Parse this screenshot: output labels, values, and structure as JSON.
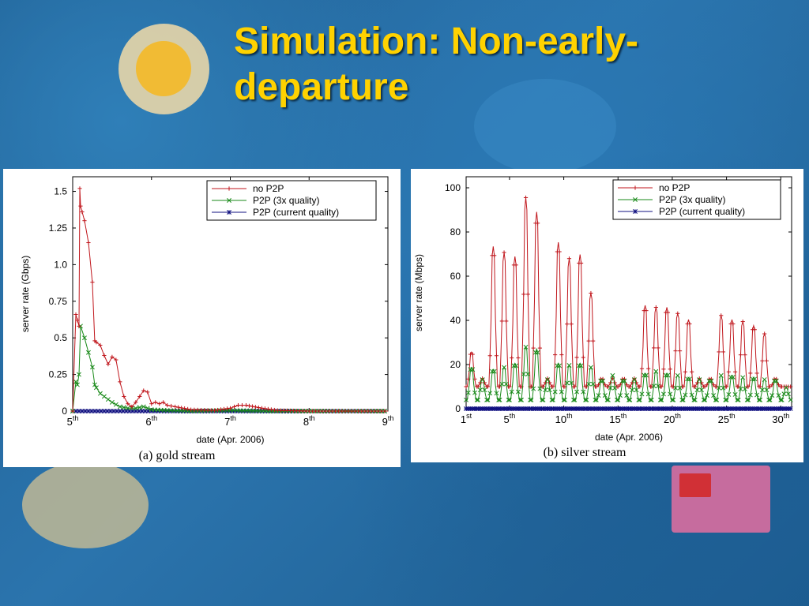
{
  "slide": {
    "title": "Simulation: Non-early-departure"
  },
  "chart_data": [
    {
      "type": "line",
      "caption": "(a)  gold stream",
      "xlabel": "date (Apr. 2006)",
      "ylabel": "server rate (Gbps)",
      "xlim": [
        5,
        9
      ],
      "ylim": [
        0,
        1.6
      ],
      "y_ticks": [
        "0",
        "0.25",
        "0.5",
        "0.75",
        "1.0",
        "1.25",
        "1.5"
      ],
      "x_ticks": [
        {
          "num": "5",
          "sup": "th"
        },
        {
          "num": "6",
          "sup": "th"
        },
        {
          "num": "7",
          "sup": "th"
        },
        {
          "num": "8",
          "sup": "th"
        },
        {
          "num": "9",
          "sup": "th"
        }
      ],
      "legend": "top-right",
      "grid": false,
      "series": [
        {
          "name": "no P2P",
          "color": "#c0161c",
          "marker": "+",
          "x": [
            5.0,
            5.04,
            5.06,
            5.08,
            5.09,
            5.1,
            5.12,
            5.15,
            5.2,
            5.25,
            5.28,
            5.3,
            5.35,
            5.4,
            5.45,
            5.5,
            5.55,
            5.6,
            5.65,
            5.7,
            5.75,
            5.8,
            5.85,
            5.9,
            5.95,
            6.0,
            6.05,
            6.1,
            6.15,
            6.2,
            6.3,
            6.5,
            6.8,
            7.0,
            7.1,
            7.2,
            7.4,
            7.6,
            8.0,
            8.5,
            9.0
          ],
          "y": [
            0.0,
            0.66,
            0.62,
            0.58,
            1.52,
            1.4,
            1.36,
            1.3,
            1.15,
            0.88,
            0.48,
            0.47,
            0.45,
            0.38,
            0.32,
            0.37,
            0.35,
            0.2,
            0.1,
            0.05,
            0.03,
            0.06,
            0.1,
            0.14,
            0.13,
            0.05,
            0.06,
            0.05,
            0.06,
            0.04,
            0.03,
            0.01,
            0.005,
            0.02,
            0.04,
            0.04,
            0.02,
            0.005,
            0.0,
            0.0,
            0.0
          ]
        },
        {
          "name": "P2P (3x quality)",
          "color": "#1a8a1a",
          "marker": "x",
          "x": [
            5.0,
            5.04,
            5.06,
            5.08,
            5.1,
            5.15,
            5.2,
            5.25,
            5.28,
            5.3,
            5.35,
            5.4,
            5.5,
            5.6,
            5.7,
            5.8,
            5.9,
            6.0,
            6.2,
            6.5,
            7.0,
            7.5,
            8.0,
            9.0
          ],
          "y": [
            0.0,
            0.2,
            0.18,
            0.25,
            0.58,
            0.5,
            0.4,
            0.3,
            0.18,
            0.16,
            0.12,
            0.1,
            0.06,
            0.03,
            0.02,
            0.02,
            0.03,
            0.01,
            0.005,
            0.0,
            0.005,
            0.0,
            0.0,
            0.0
          ]
        },
        {
          "name": "P2P (current quality)",
          "color": "#101080",
          "marker": "*",
          "x": [
            5.0,
            9.0
          ],
          "y": [
            0.0,
            0.0
          ]
        }
      ]
    },
    {
      "type": "line",
      "caption": "(b)  silver stream",
      "xlabel": "date (Apr. 2006)",
      "ylabel": "server rate (Mbps)",
      "xlim": [
        1,
        31
      ],
      "ylim": [
        0,
        105
      ],
      "y_ticks": [
        "0",
        "20",
        "40",
        "60",
        "80",
        "100"
      ],
      "x_ticks": [
        {
          "num": "1",
          "sup": "st"
        },
        {
          "num": "5",
          "sup": "th"
        },
        {
          "num": "10",
          "sup": "th"
        },
        {
          "num": "15",
          "sup": "th"
        },
        {
          "num": "20",
          "sup": "th"
        },
        {
          "num": "25",
          "sup": "th"
        },
        {
          "num": "30",
          "sup": "th"
        }
      ],
      "legend": "top-right",
      "grid": false,
      "series": [
        {
          "name": "no P2P",
          "color": "#c0161c",
          "marker": "+",
          "daily_peak_x": [
            1.3,
            3.3,
            4.3,
            5.3,
            6.3,
            7.3,
            9.3,
            10.3,
            11.3,
            12.3,
            17.3,
            18.3,
            19.3,
            20.3,
            21.3,
            24.3,
            25.3,
            26.3,
            27.3,
            28.3,
            30.3
          ],
          "daily_peak_y": [
            27,
            79,
            76,
            74,
            103,
            96,
            81,
            73,
            75,
            56,
            50,
            49,
            49,
            46,
            43,
            45,
            43,
            42,
            40,
            36,
            10
          ],
          "baseline": 10
        },
        {
          "name": "P2P (3x quality)",
          "color": "#1a8a1a",
          "marker": "x",
          "daily_peak_x": [
            1.3,
            3.3,
            4.3,
            5.3,
            6.3,
            7.3,
            9.3,
            10.3,
            11.3,
            12.3,
            14.3,
            17.3,
            18.3,
            19.3,
            20.3,
            21.3,
            24.3,
            25.3,
            26.3,
            27.3,
            28.3,
            30.3
          ],
          "daily_peak_y": [
            20,
            19,
            20,
            22,
            30,
            29,
            22,
            21,
            22,
            20,
            16,
            17,
            18,
            17,
            16,
            15,
            16,
            16,
            15,
            15,
            14,
            10
          ],
          "baseline": 4
        },
        {
          "name": "P2P (current quality)",
          "color": "#101080",
          "marker": "*",
          "daily_peak_x": [
            1.0,
            31.0
          ],
          "daily_peak_y": [
            0,
            0
          ],
          "baseline": 0
        }
      ]
    }
  ]
}
